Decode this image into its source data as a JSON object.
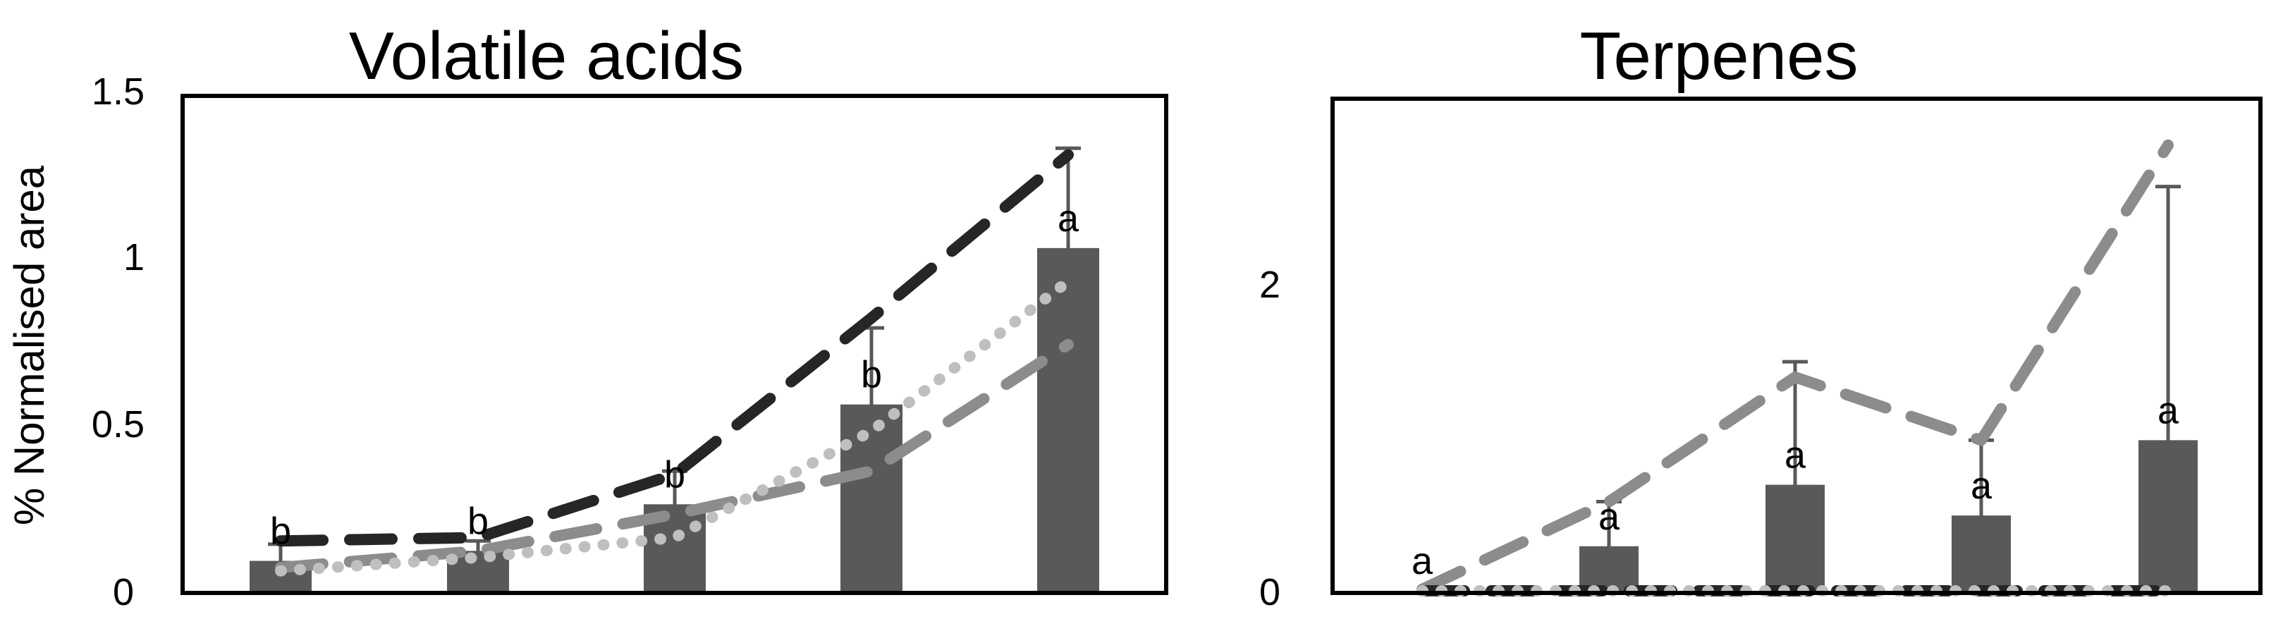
{
  "chart_data": [
    {
      "type": "bar",
      "title": "Volatile acids",
      "ylabel": "% Normalised area",
      "xlabel": "",
      "ylim": [
        0,
        1.5
      ],
      "yticks": [
        "0",
        "0.5",
        "1",
        "1.5"
      ],
      "grid": false,
      "categories": [
        "",
        "",
        "",
        "",
        ""
      ],
      "values": [
        0.09,
        0.12,
        0.26,
        0.56,
        1.03
      ],
      "errors": [
        0.05,
        0.03,
        0.1,
        0.23,
        0.3
      ],
      "significance": [
        "b",
        "b",
        "b",
        "b",
        "a"
      ],
      "bar_color": "#595959",
      "series": [
        {
          "style": "dashed",
          "color": "#262626",
          "values": [
            0.15,
            0.16,
            0.35,
            0.82,
            1.31
          ]
        },
        {
          "style": "dashed",
          "color": "#8c8c8c",
          "values": [
            0.07,
            0.12,
            0.23,
            0.36,
            0.74
          ]
        },
        {
          "style": "dotted",
          "color": "#bfbfbf",
          "values": [
            0.06,
            0.1,
            0.16,
            0.48,
            0.93
          ]
        }
      ]
    },
    {
      "type": "bar",
      "title": "Terpenes",
      "ylabel": "",
      "xlabel": "",
      "ylim": [
        0,
        3
      ],
      "yticks": [
        "0",
        "2"
      ],
      "grid": false,
      "categories": [
        "",
        "",
        "",
        "",
        ""
      ],
      "values": [
        0.0,
        0.29,
        0.69,
        0.49,
        0.98
      ],
      "errors": [
        0.0,
        0.29,
        0.8,
        0.49,
        1.65
      ],
      "significance": [
        "a",
        "a",
        "a",
        "a",
        "a"
      ],
      "bar_color": "#595959",
      "series": [
        {
          "style": "dashed",
          "color": "#8c8c8c",
          "values": [
            0.01,
            0.58,
            1.39,
            0.98,
            2.9
          ]
        },
        {
          "style": "dashed",
          "color": "#262626",
          "values": [
            0.0,
            0.0,
            0.0,
            0.0,
            0.0
          ]
        },
        {
          "style": "dotted",
          "color": "#bfbfbf",
          "values": [
            0.0,
            0.0,
            0.0,
            0.0,
            0.0
          ]
        }
      ]
    }
  ]
}
